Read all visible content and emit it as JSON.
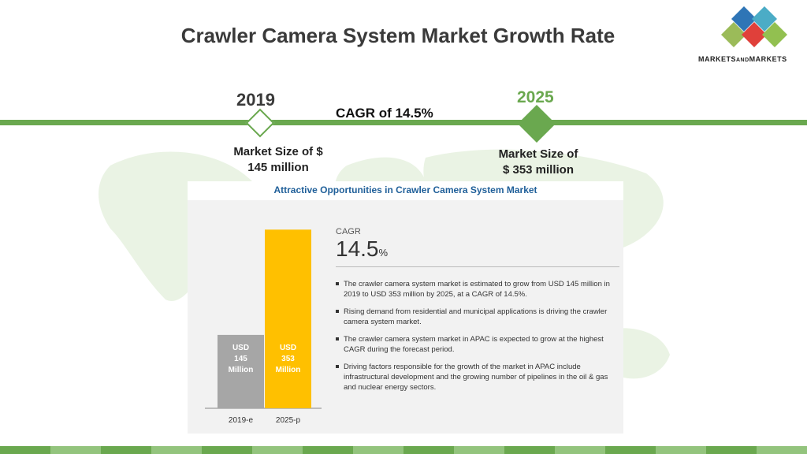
{
  "title": "Crawler Camera System Market Growth Rate",
  "logo": {
    "text_main": "MARKETS",
    "text_small": "AND",
    "text_end": "MARKETS"
  },
  "timeline": {
    "start_year": "2019",
    "end_year": "2025",
    "cagr_text": "CAGR of 14.5%",
    "start_size_line1": "Market Size of $",
    "start_size_line2": "145 million",
    "end_size_line1": "Market Size of",
    "end_size_line2": "$ 353 million"
  },
  "panel": {
    "title": "Attractive Opportunities in Crawler Camera System Market",
    "cagr_label": "CAGR",
    "cagr_value": "14.5",
    "cagr_unit": "%",
    "bullets": [
      "The crawler camera system market is estimated to grow from USD 145 million in 2019 to USD 353 million by 2025, at a CAGR of 14.5%.",
      "Rising demand from residential and municipal applications is driving the crawler camera system market.",
      "The crawler camera system market in APAC is expected to grow at the highest CAGR during the forecast period.",
      "Driving factors responsible for the growth of the market in APAC include infrastructural development and the growing number of pipelines in the oil & gas and nuclear energy sectors."
    ]
  },
  "colors": {
    "accent_green": "#6aa84f",
    "bar_2019": "#a6a6a6",
    "bar_2025": "#ffc000",
    "panel_title": "#1f5f99"
  },
  "chart_data": {
    "type": "bar",
    "categories": [
      "2019-e",
      "2025-p"
    ],
    "values": [
      145,
      353
    ],
    "value_labels": [
      [
        "USD",
        "145",
        "Million"
      ],
      [
        "USD",
        "353",
        "Million"
      ]
    ],
    "unit": "USD Million",
    "ylim": [
      0,
      380
    ]
  }
}
